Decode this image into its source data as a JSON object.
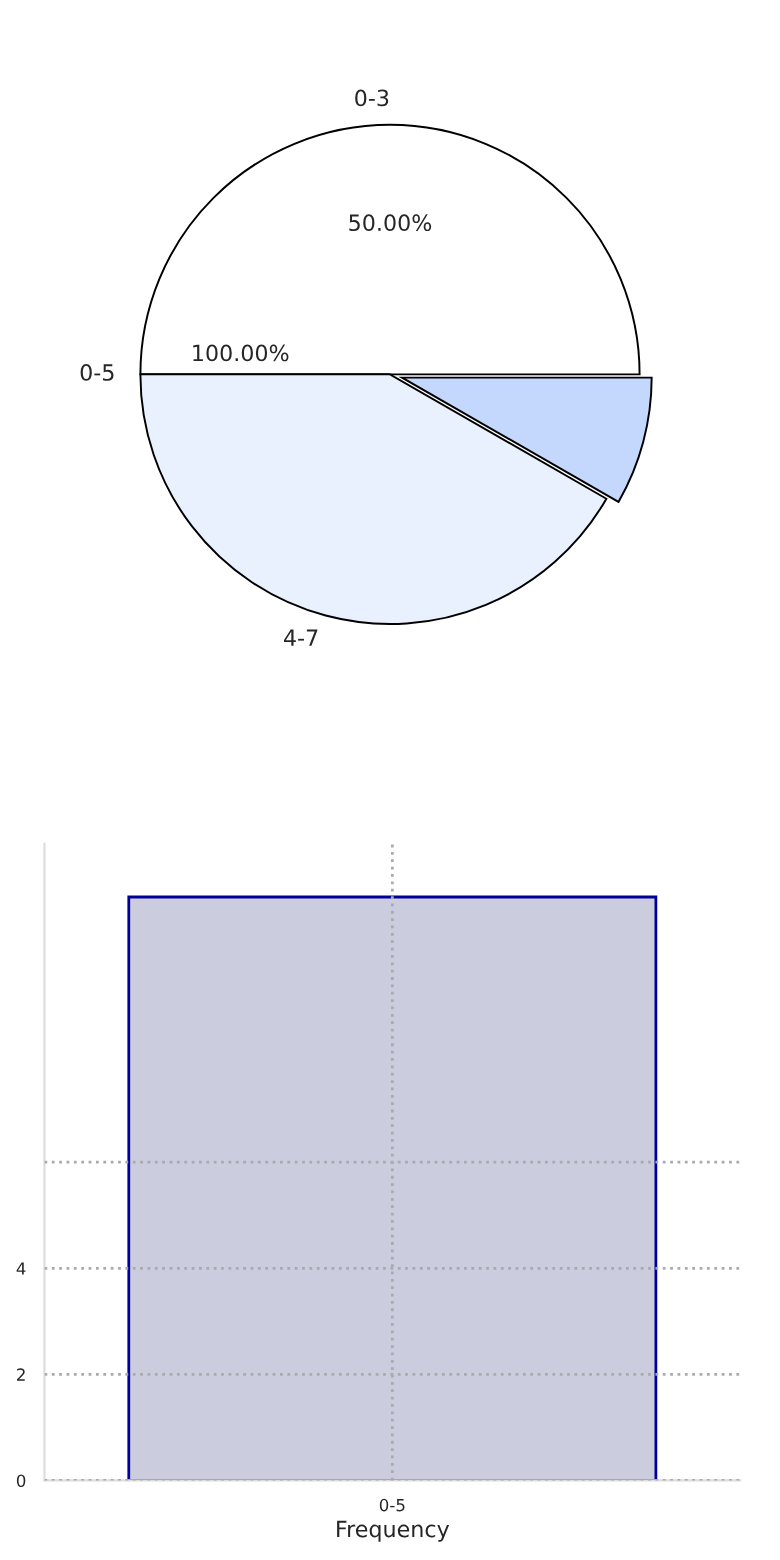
{
  "chart_data": [
    {
      "type": "pie",
      "categories": [
        "0-3",
        "0-5",
        "4-7",
        null
      ],
      "values": [
        50,
        0,
        41.7,
        8.3
      ],
      "colors": [
        "#ffffff",
        "#ffffff",
        "#eaf1fe",
        "#c4d8fe"
      ],
      "value_labels": [
        "50.00%",
        null,
        null,
        null
      ],
      "annotations": [
        "100.00%"
      ]
    },
    {
      "type": "bar",
      "categories": [
        "0-5"
      ],
      "values": [
        11
      ],
      "color": "#ccccdf",
      "xlabel": "Frequency",
      "ylim": [
        0,
        12
      ],
      "yticks": [
        0,
        2,
        4,
        {
          "value": 6,
          "label": null
        }
      ],
      "grid": true
    }
  ]
}
